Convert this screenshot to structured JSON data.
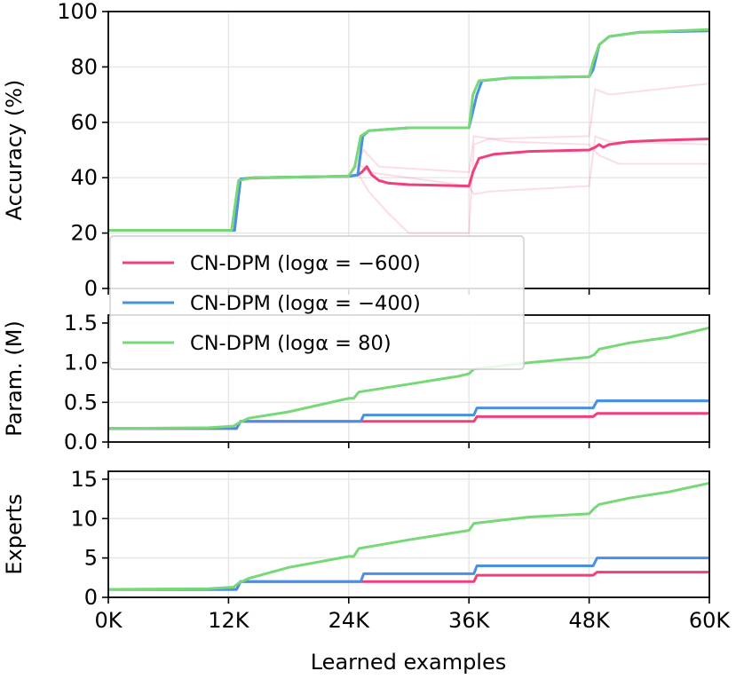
{
  "chart_data": {
    "type": "line",
    "xlabel": "Learned examples",
    "x_ticks": [
      "0K",
      "12K",
      "24K",
      "36K",
      "48K",
      "60K"
    ],
    "x_tick_values": [
      0,
      12000,
      24000,
      36000,
      48000,
      60000
    ],
    "xlim": [
      0,
      60000
    ],
    "colors": {
      "pink": "#f0407a",
      "blue": "#4a90e2",
      "green": "#77d877"
    },
    "legend": {
      "placement": "upper-left over accuracy and parameter panels",
      "entries": [
        {
          "name": "CN-DPM (logα = −600)",
          "color": "#f0407a"
        },
        {
          "name": "CN-DPM (logα = −400)",
          "color": "#4a90e2"
        },
        {
          "name": "CN-DPM (logα = 80)",
          "color": "#77d877"
        }
      ]
    },
    "panels": [
      {
        "id": "accuracy",
        "ylabel": "Accuracy (%)",
        "ylim": [
          0,
          100
        ],
        "y_ticks": [
          "0",
          "20",
          "40",
          "60",
          "80",
          "100"
        ],
        "y_tick_values": [
          0,
          20,
          40,
          60,
          80,
          100
        ],
        "series": [
          {
            "name": "CN-DPM (logα = −600)",
            "color": "#f0407a",
            "points": [
              [
                0,
                21
              ],
              [
                12600,
                21
              ],
              [
                13200,
                39.5
              ],
              [
                14500,
                40
              ],
              [
                24000,
                40.5
              ],
              [
                24900,
                41
              ],
              [
                25300,
                42
              ],
              [
                25800,
                44
              ],
              [
                26300,
                41
              ],
              [
                27000,
                39
              ],
              [
                28000,
                38
              ],
              [
                30000,
                37.5
              ],
              [
                36000,
                37
              ],
              [
                36400,
                42
              ],
              [
                37000,
                47
              ],
              [
                38500,
                48.5
              ],
              [
                42000,
                49.5
              ],
              [
                48000,
                50
              ],
              [
                48600,
                51
              ],
              [
                49000,
                52
              ],
              [
                49400,
                51
              ],
              [
                50000,
                52
              ],
              [
                52000,
                53
              ],
              [
                55000,
                53.5
              ],
              [
                60000,
                54
              ]
            ]
          },
          {
            "name": "CN-DPM (logα = −400)",
            "color": "#4a90e2",
            "points": [
              [
                0,
                21
              ],
              [
                12600,
                21
              ],
              [
                13200,
                39.5
              ],
              [
                14500,
                40
              ],
              [
                24000,
                40.5
              ],
              [
                24900,
                41
              ],
              [
                25400,
                55
              ],
              [
                26000,
                57
              ],
              [
                30000,
                58
              ],
              [
                36000,
                58
              ],
              [
                36800,
                70
              ],
              [
                37300,
                75
              ],
              [
                40000,
                76
              ],
              [
                48000,
                76.5
              ],
              [
                48400,
                79
              ],
              [
                49000,
                88
              ],
              [
                50000,
                91
              ],
              [
                53000,
                92.5
              ],
              [
                60000,
                93
              ]
            ]
          },
          {
            "name": "CN-DPM (logα = 80)",
            "color": "#77d877",
            "points": [
              [
                0,
                21
              ],
              [
                12300,
                21
              ],
              [
                13000,
                39
              ],
              [
                14500,
                40
              ],
              [
                24000,
                40.5
              ],
              [
                24600,
                44
              ],
              [
                25200,
                55
              ],
              [
                26000,
                57
              ],
              [
                30000,
                58
              ],
              [
                36000,
                58
              ],
              [
                36400,
                70
              ],
              [
                37000,
                75
              ],
              [
                40000,
                76
              ],
              [
                48000,
                76.5
              ],
              [
                48400,
                82
              ],
              [
                49000,
                88
              ],
              [
                50000,
                91
              ],
              [
                53000,
                92.5
              ],
              [
                60000,
                93.5
              ]
            ]
          }
        ],
        "faint_runs": [
          {
            "color": "#f0407a",
            "points": [
              [
                0,
                21
              ],
              [
                12600,
                21
              ],
              [
                13200,
                39.5
              ],
              [
                24000,
                40.5
              ],
              [
                25000,
                41
              ],
              [
                26000,
                35
              ],
              [
                28000,
                27
              ],
              [
                30000,
                20
              ],
              [
                36000,
                20
              ],
              [
                36500,
                52
              ],
              [
                38000,
                54
              ],
              [
                48000,
                55
              ],
              [
                48600,
                72
              ],
              [
                50000,
                70
              ],
              [
                55000,
                72
              ],
              [
                60000,
                74
              ]
            ]
          },
          {
            "color": "#f0407a",
            "points": [
              [
                0,
                21
              ],
              [
                12600,
                21
              ],
              [
                13200,
                39.5
              ],
              [
                24000,
                40.5
              ],
              [
                25000,
                45
              ],
              [
                26000,
                42
              ],
              [
                30000,
                40
              ],
              [
                36000,
                37
              ],
              [
                36500,
                34
              ],
              [
                38000,
                35
              ],
              [
                48000,
                37
              ],
              [
                48600,
                55
              ],
              [
                50000,
                53
              ],
              [
                60000,
                52
              ]
            ]
          },
          {
            "color": "#f0407a",
            "points": [
              [
                0,
                21
              ],
              [
                12600,
                21
              ],
              [
                13200,
                39.5
              ],
              [
                24000,
                40.5
              ],
              [
                25500,
                50
              ],
              [
                27000,
                44
              ],
              [
                36000,
                42
              ],
              [
                36500,
                55
              ],
              [
                40000,
                53
              ],
              [
                48000,
                52
              ],
              [
                49000,
                48
              ],
              [
                51000,
                45
              ],
              [
                60000,
                45
              ]
            ]
          }
        ]
      },
      {
        "id": "params",
        "ylabel": "Param. (M)",
        "ylim": [
          0,
          1.6
        ],
        "y_ticks": [
          "0.0",
          "0.5",
          "1.0",
          "1.5"
        ],
        "y_tick_values": [
          0,
          0.5,
          1.0,
          1.5
        ],
        "series": [
          {
            "name": "CN-DPM (logα = −600)",
            "color": "#f0407a",
            "points": [
              [
                0,
                0.17
              ],
              [
                12800,
                0.17
              ],
              [
                13200,
                0.26
              ],
              [
                36500,
                0.26
              ],
              [
                36800,
                0.32
              ],
              [
                48400,
                0.32
              ],
              [
                48800,
                0.36
              ],
              [
                60000,
                0.36
              ]
            ]
          },
          {
            "name": "CN-DPM (logα = −400)",
            "color": "#4a90e2",
            "points": [
              [
                0,
                0.17
              ],
              [
                12800,
                0.17
              ],
              [
                13200,
                0.26
              ],
              [
                25200,
                0.26
              ],
              [
                25500,
                0.34
              ],
              [
                36500,
                0.34
              ],
              [
                36800,
                0.43
              ],
              [
                48400,
                0.43
              ],
              [
                48800,
                0.52
              ],
              [
                60000,
                0.52
              ]
            ]
          },
          {
            "name": "CN-DPM (logα = 80)",
            "color": "#77d877",
            "points": [
              [
                0,
                0.17
              ],
              [
                10000,
                0.18
              ],
              [
                12500,
                0.2
              ],
              [
                13000,
                0.24
              ],
              [
                14000,
                0.3
              ],
              [
                18000,
                0.38
              ],
              [
                24000,
                0.55
              ],
              [
                24500,
                0.55
              ],
              [
                25000,
                0.63
              ],
              [
                30000,
                0.73
              ],
              [
                35000,
                0.83
              ],
              [
                36000,
                0.86
              ],
              [
                36500,
                0.92
              ],
              [
                42000,
                1.0
              ],
              [
                48000,
                1.07
              ],
              [
                48500,
                1.1
              ],
              [
                49000,
                1.17
              ],
              [
                52000,
                1.25
              ],
              [
                56000,
                1.32
              ],
              [
                60000,
                1.44
              ]
            ]
          }
        ]
      },
      {
        "id": "experts",
        "ylabel": "Experts",
        "ylim": [
          0,
          16
        ],
        "y_ticks": [
          "0",
          "5",
          "10",
          "15"
        ],
        "y_tick_values": [
          0,
          5,
          10,
          15
        ],
        "series": [
          {
            "name": "CN-DPM (logα = −600)",
            "color": "#f0407a",
            "points": [
              [
                0,
                1
              ],
              [
                12800,
                1
              ],
              [
                13200,
                2
              ],
              [
                36500,
                2
              ],
              [
                36800,
                2.8
              ],
              [
                48400,
                2.8
              ],
              [
                48800,
                3.2
              ],
              [
                60000,
                3.2
              ]
            ]
          },
          {
            "name": "CN-DPM (logα = −400)",
            "color": "#4a90e2",
            "points": [
              [
                0,
                1
              ],
              [
                12800,
                1
              ],
              [
                13200,
                2
              ],
              [
                25200,
                2
              ],
              [
                25500,
                3
              ],
              [
                36500,
                3
              ],
              [
                36800,
                4
              ],
              [
                48400,
                4
              ],
              [
                48800,
                5
              ],
              [
                60000,
                5
              ]
            ]
          },
          {
            "name": "CN-DPM (logα = 80)",
            "color": "#77d877",
            "points": [
              [
                0,
                1
              ],
              [
                10000,
                1.1
              ],
              [
                12500,
                1.3
              ],
              [
                13000,
                1.8
              ],
              [
                14000,
                2.4
              ],
              [
                18000,
                3.8
              ],
              [
                24000,
                5.2
              ],
              [
                24500,
                5.2
              ],
              [
                25000,
                6.2
              ],
              [
                30000,
                7.3
              ],
              [
                35000,
                8.3
              ],
              [
                36000,
                8.5
              ],
              [
                36500,
                9.4
              ],
              [
                42000,
                10.2
              ],
              [
                48000,
                10.6
              ],
              [
                48500,
                11.3
              ],
              [
                49000,
                11.8
              ],
              [
                52000,
                12.6
              ],
              [
                56000,
                13.4
              ],
              [
                60000,
                14.5
              ]
            ]
          }
        ]
      }
    ]
  }
}
